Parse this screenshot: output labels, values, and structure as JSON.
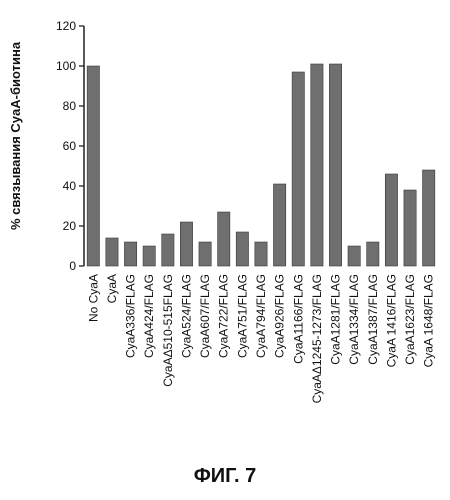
{
  "figure": {
    "caption": "ФИГ. 7"
  },
  "chart_data": {
    "type": "bar",
    "title": "",
    "xlabel": "",
    "ylabel": "% связывания CyaA-биотина",
    "ylim": [
      0,
      120
    ],
    "yticks": [
      0,
      20,
      40,
      60,
      80,
      100,
      120
    ],
    "grid": false,
    "legend": "none",
    "bar_color": "#6f6f6f",
    "categories": [
      "No CyaA",
      "CyaA",
      "CyaA336/FLAG",
      "CyaA424/FLAG",
      "CyaAΔ510-515FLAG",
      "CyaA524/FLAG",
      "CyaA607/FLAG",
      "CyaA722/FLAG",
      "CyaA751/FLAG",
      "CyaA794/FLAG",
      "CyaA926/FLAG",
      "CyaA1166/FLAG",
      "CyaAΔ1245-1273/FLAG",
      "CyaA1281/FLAG",
      "CyaA1334/FLAG",
      "CyaA1387/FLAG",
      "CyaA 1416/FLAG",
      "CyaA1623/FLAG",
      "CyaA 1648/FLAG"
    ],
    "values": [
      100,
      14,
      12,
      10,
      16,
      22,
      12,
      27,
      17,
      12,
      41,
      97,
      101,
      101,
      10,
      12,
      46,
      38,
      48
    ]
  }
}
